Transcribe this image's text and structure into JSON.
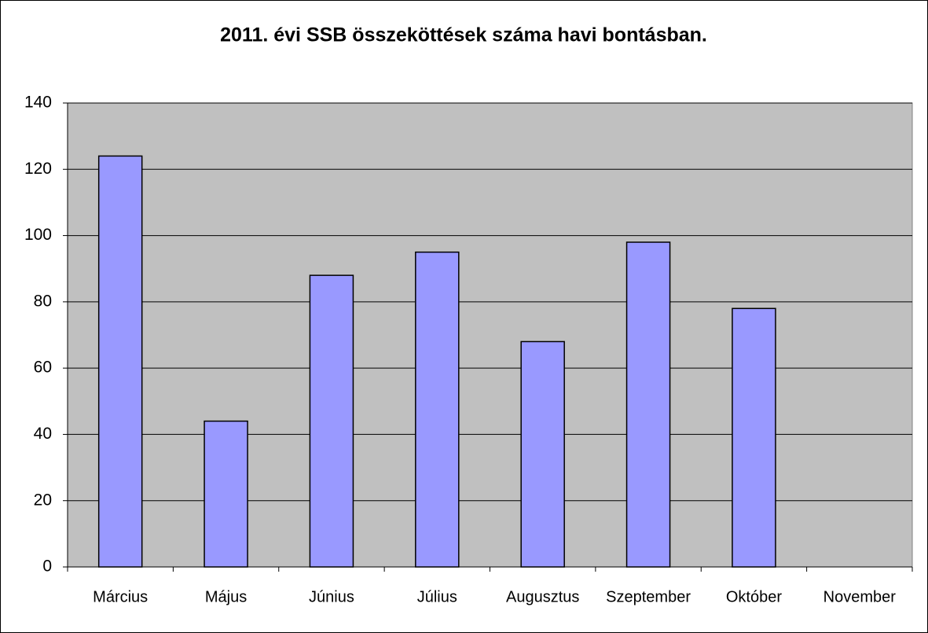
{
  "chart_data": {
    "type": "bar",
    "title": "2011. évi SSB összeköttések száma havi bontásban.",
    "categories": [
      "Március",
      "Május",
      "Június",
      "Július",
      "Augusztus",
      "Szeptember",
      "Október",
      "November"
    ],
    "values": [
      124,
      44,
      88,
      95,
      68,
      98,
      78,
      null
    ],
    "color": "#9999ff",
    "ylim": [
      0,
      140
    ],
    "yticks": [
      0,
      20,
      40,
      60,
      80,
      100,
      120,
      140
    ],
    "grid": true
  }
}
